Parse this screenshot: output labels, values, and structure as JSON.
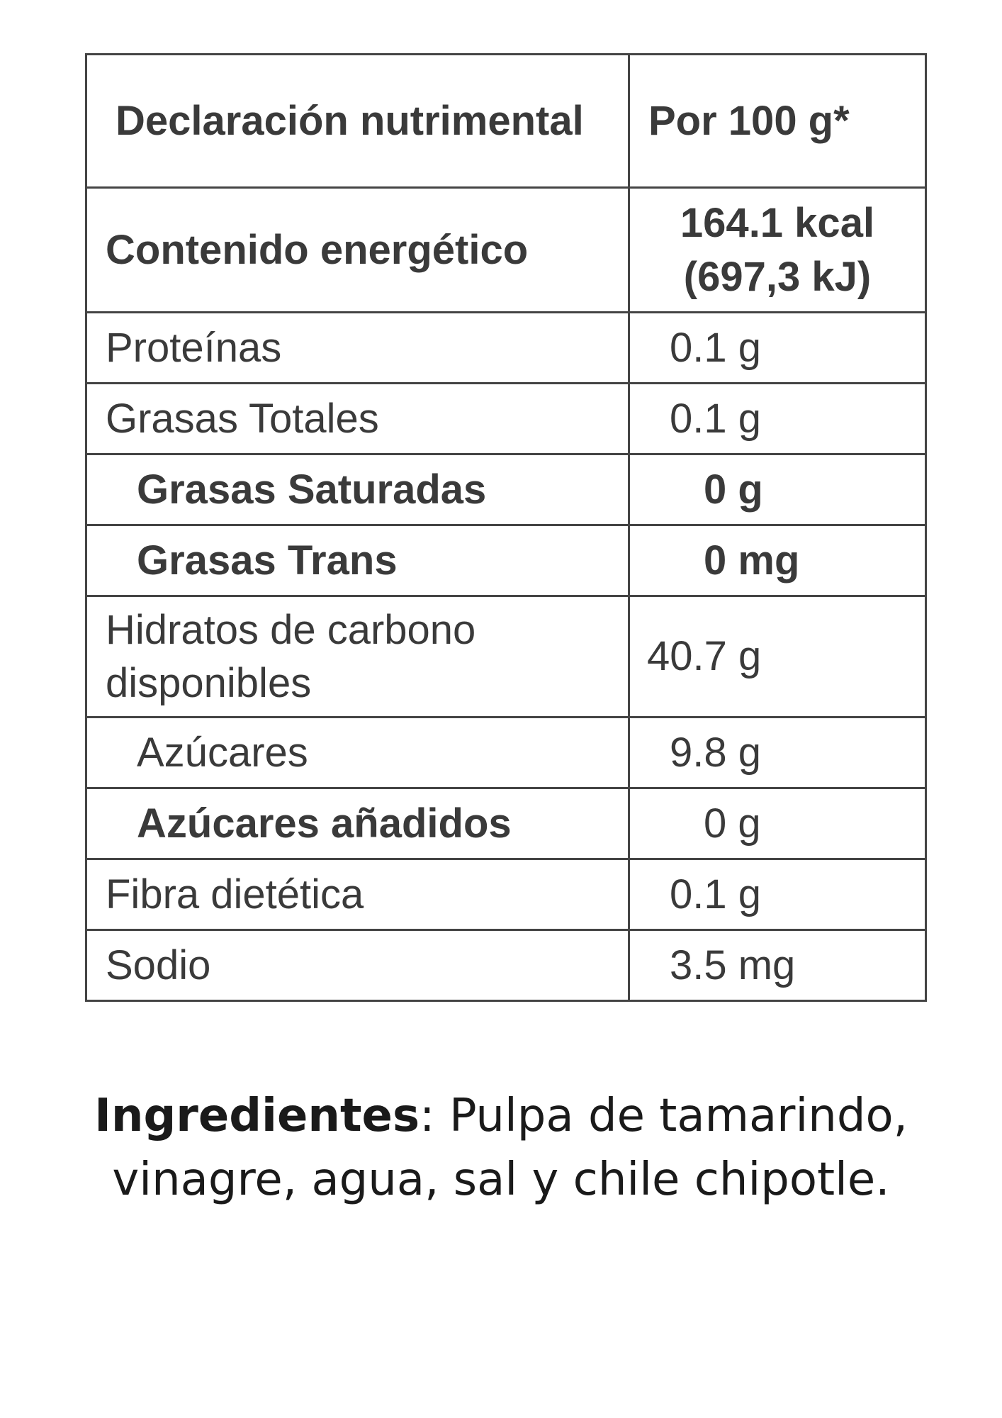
{
  "table": {
    "header": {
      "label": "Declaración nutrimental",
      "value": "Por 100 g*"
    },
    "energy": {
      "label": "Contenido energético",
      "kcal": "164.1 kcal",
      "kj": "(697,3 kJ)"
    },
    "rows": [
      {
        "label": "Proteínas",
        "value": "0.1 g"
      },
      {
        "label": "Grasas Totales",
        "value": "0.1 g"
      },
      {
        "label": "Grasas Saturadas",
        "value": "0 g"
      },
      {
        "label": "Grasas Trans",
        "value": "0 mg"
      },
      {
        "label_line1": "Hidratos de carbono",
        "label_line2": "disponibles",
        "value": "40.7 g"
      },
      {
        "label": "Azúcares",
        "value": "9.8 g"
      },
      {
        "label": "Azúcares añadidos",
        "value": "0 g"
      },
      {
        "label": "Fibra dietética",
        "value": "0.1 g"
      },
      {
        "label": "Sodio",
        "value": "3.5 mg"
      }
    ]
  },
  "ingredients": {
    "label": "Ingredientes",
    "separator": ":",
    "text": " Pulpa de tamarindo, vinagre, agua, sal y chile chipotle."
  }
}
